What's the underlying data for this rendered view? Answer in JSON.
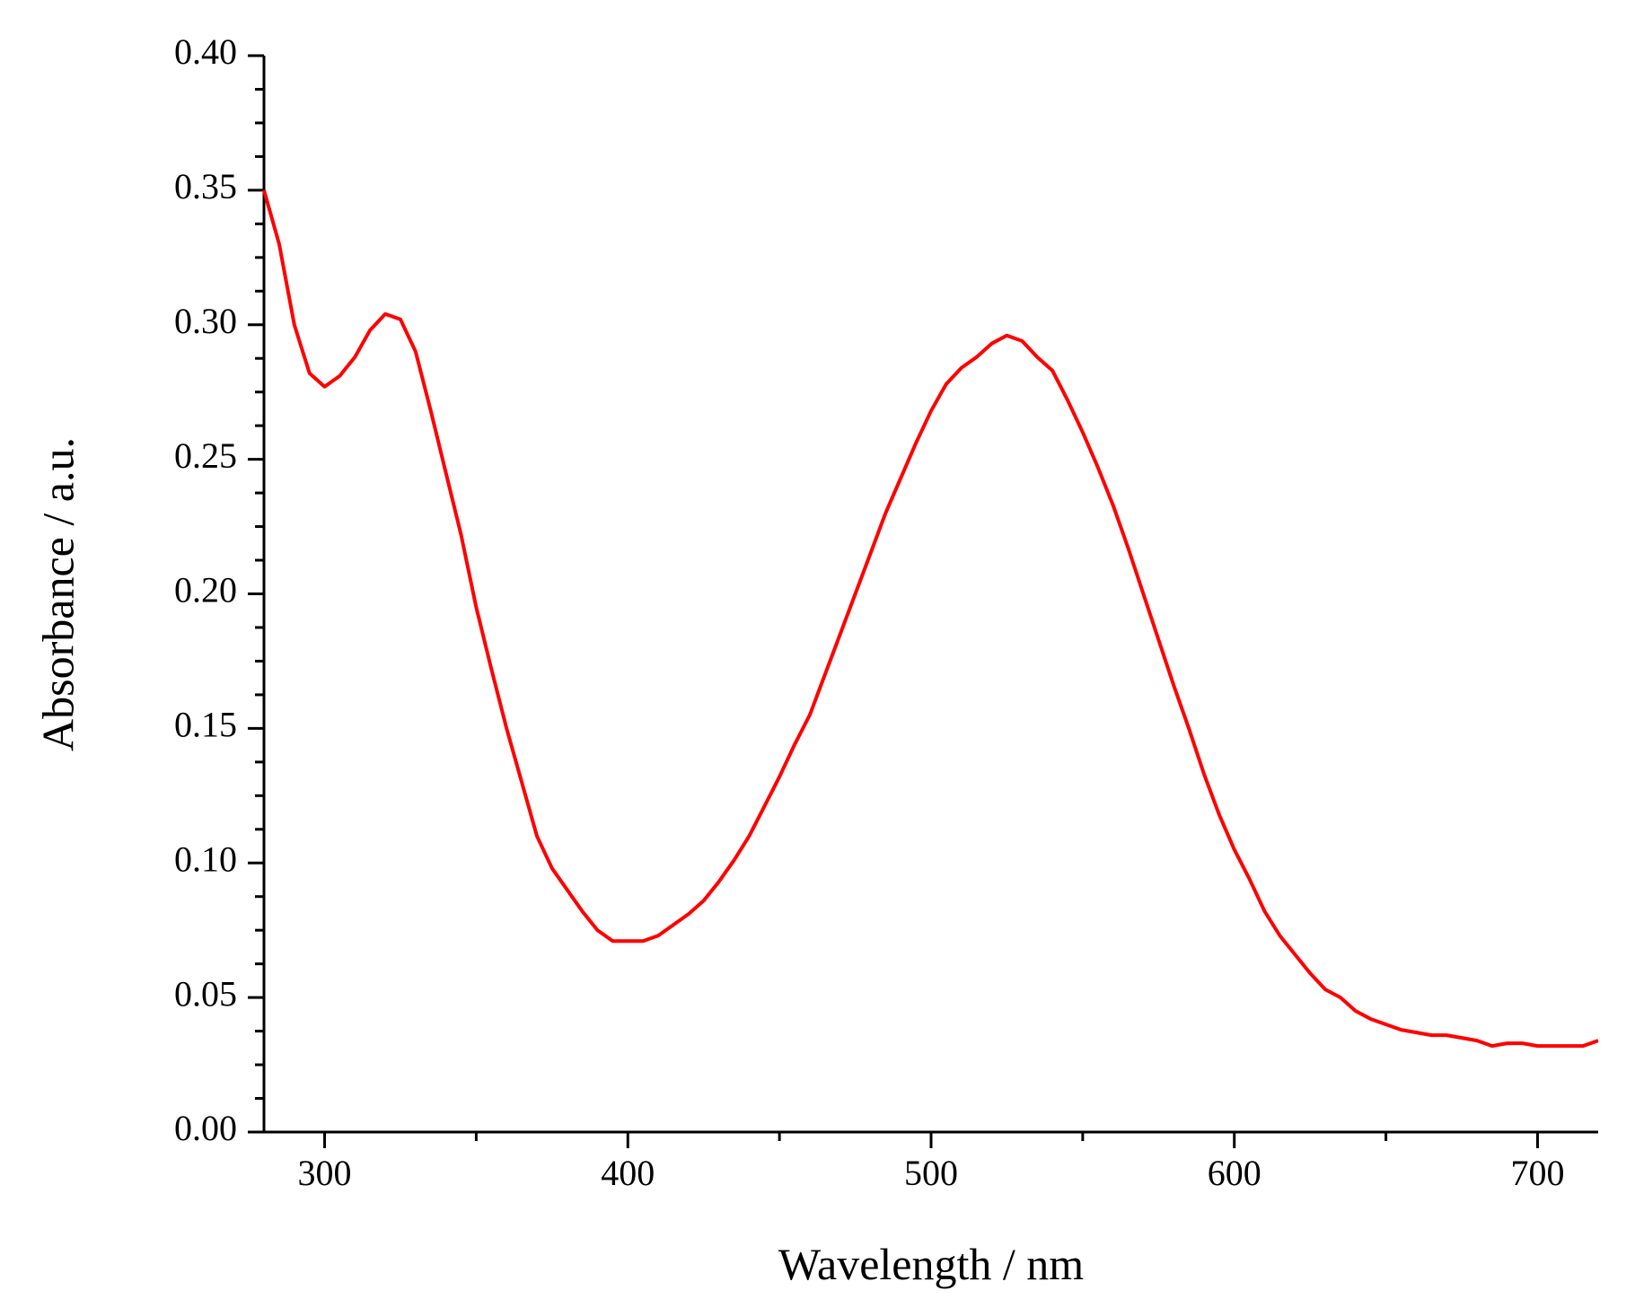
{
  "chart_data": {
    "type": "line",
    "x_label": "Wavelength / nm",
    "y_label": "Absorbance / a.u.",
    "xlim": [
      280,
      720
    ],
    "ylim": [
      0,
      0.4
    ],
    "xticks": [
      300,
      400,
      500,
      600,
      700
    ],
    "xminorticks": [
      350,
      450,
      550,
      650
    ],
    "yticks": [
      {
        "value": 0,
        "label": "0.00"
      },
      0.05,
      {
        "value": 0.1,
        "label": "0.10"
      },
      0.15,
      {
        "value": 0.2,
        "label": "0.20"
      },
      0.25,
      {
        "value": 0.3,
        "label": "0.30"
      },
      0.35,
      {
        "value": 0.4,
        "label": "0.40"
      }
    ],
    "yminorticks": [
      0.0125,
      0.025,
      0.0375,
      0.0625,
      0.075,
      0.0875,
      0.1125,
      0.125,
      0.1375,
      0.1625,
      0.175,
      0.1875,
      0.2125,
      0.225,
      0.2375,
      0.2625,
      0.275,
      0.2875,
      0.3125,
      0.325,
      0.3375,
      0.3625,
      0.375,
      0.3875
    ],
    "x": [
      280,
      285,
      290,
      295,
      300,
      305,
      310,
      315,
      320,
      325,
      330,
      335,
      340,
      345,
      350,
      355,
      360,
      365,
      370,
      375,
      380,
      385,
      390,
      395,
      400,
      405,
      410,
      415,
      420,
      425,
      430,
      435,
      440,
      445,
      450,
      455,
      460,
      465,
      470,
      475,
      480,
      485,
      490,
      495,
      500,
      505,
      510,
      515,
      520,
      525,
      530,
      535,
      540,
      545,
      550,
      555,
      560,
      565,
      570,
      575,
      580,
      585,
      590,
      595,
      600,
      605,
      610,
      615,
      620,
      625,
      630,
      635,
      640,
      645,
      650,
      655,
      660,
      665,
      670,
      675,
      680,
      685,
      690,
      695,
      700,
      705,
      710,
      715,
      720
    ],
    "series": [
      {
        "color": "#ff0000",
        "values": [
          0.35,
          0.33,
          0.3,
          0.282,
          0.277,
          0.281,
          0.288,
          0.298,
          0.304,
          0.302,
          0.29,
          0.268,
          0.245,
          0.222,
          0.195,
          0.172,
          0.15,
          0.13,
          0.11,
          0.098,
          0.09,
          0.082,
          0.075,
          0.071,
          0.071,
          0.071,
          0.073,
          0.077,
          0.081,
          0.086,
          0.093,
          0.101,
          0.11,
          0.121,
          0.132,
          0.144,
          0.155,
          0.17,
          0.185,
          0.2,
          0.215,
          0.23,
          0.243,
          0.256,
          0.268,
          0.278,
          0.284,
          0.288,
          0.293,
          0.296,
          0.294,
          0.288,
          0.283,
          0.272,
          0.26,
          0.247,
          0.233,
          0.217,
          0.2,
          0.183,
          0.166,
          0.15,
          0.133,
          0.118,
          0.105,
          0.094,
          0.082,
          0.073,
          0.066,
          0.059,
          0.053,
          0.05,
          0.045,
          0.042,
          0.04,
          0.038,
          0.037,
          0.036,
          0.036,
          0.035,
          0.034,
          0.032,
          0.033,
          0.033,
          0.032,
          0.032,
          0.032,
          0.032,
          0.034
        ]
      }
    ]
  }
}
